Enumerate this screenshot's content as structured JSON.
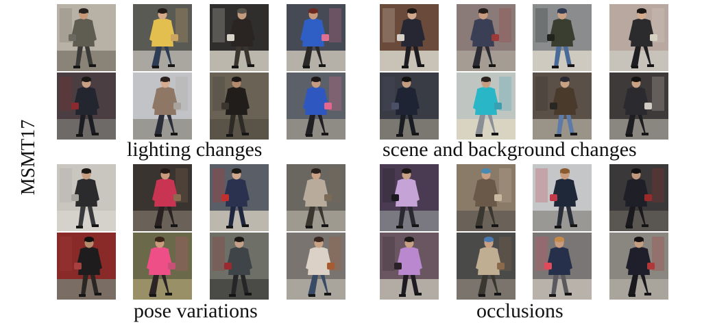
{
  "dataset_label": "MSMT17",
  "groups": [
    {
      "caption": "lighting changes",
      "rows": [
        [
          {
            "bg": "#b8b2a6",
            "ground": "#8a8478",
            "coat": "#5f5d52",
            "legs": "#3a3a38",
            "skin": "#c99a7a",
            "hair": "#2a2420",
            "accent": "#6b6960"
          },
          {
            "bg": "#5a5a55",
            "ground": "#a9a7a0",
            "coat": "#e3bf4f",
            "legs": "#2d3b55",
            "skin": "#d6ab8a",
            "hair": "#241c18",
            "accent": "#caa460"
          },
          {
            "bg": "#2f2e2c",
            "ground": "#bcb7ad",
            "coat": "#2a2522",
            "legs": "#3b3530",
            "skin": "#c49b7c",
            "hair": "#56514a",
            "accent": "#d9d4c9"
          },
          {
            "bg": "#454a55",
            "ground": "#b5b0a8",
            "coat": "#2f5ec4",
            "legs": "#2a2928",
            "skin": "#c89a7c",
            "hair": "#6a2a22",
            "accent": "#e07092"
          }
        ],
        [
          {
            "bg": "#4a3e42",
            "ground": "#6e6a68",
            "coat": "#23262f",
            "legs": "#1c1d22",
            "skin": "#c8a084",
            "hair": "#1c1816",
            "accent": "#8a2a30"
          },
          {
            "bg": "#c2c3c7",
            "ground": "#9a9893",
            "coat": "#8f7765",
            "legs": "#2b2d38",
            "skin": "#d6ad90",
            "hair": "#2a201c",
            "accent": "#a8a39d"
          },
          {
            "bg": "#6a6355",
            "ground": "#5a5448",
            "coat": "#211d1a",
            "legs": "#2e2a26",
            "skin": "#b48a6c",
            "hair": "#1d1815",
            "accent": "#3b352f"
          },
          {
            "bg": "#5c6068",
            "ground": "#8f8c86",
            "coat": "#2f57c0",
            "legs": "#1f1f24",
            "skin": "#c49a80",
            "hair": "#1c1816",
            "accent": "#e3678e"
          }
        ]
      ]
    },
    {
      "caption": "scene and background changes",
      "rows": [
        [
          {
            "bg": "#6a4a3a",
            "ground": "#c9c2b6",
            "coat": "#262733",
            "legs": "#1d1d22",
            "skin": "#d0a88c",
            "hair": "#1c1816",
            "accent": "#d7d2c8"
          },
          {
            "bg": "#8a7a78",
            "ground": "#a59d94",
            "coat": "#3a3f55",
            "legs": "#2a2b33",
            "skin": "#c99c80",
            "hair": "#241d1a",
            "accent": "#9c3a3a"
          },
          {
            "bg": "#8a8c8e",
            "ground": "#cfcac0",
            "coat": "#3a3e30",
            "legs": "#4a6a9a",
            "skin": "#caa084",
            "hair": "#2f3a52",
            "accent": "#20231e"
          },
          {
            "bg": "#b9a8a0",
            "ground": "#c8c3ba",
            "coat": "#2b2a2d",
            "legs": "#1f1f23",
            "skin": "#d4ab8f",
            "hair": "#1c1816",
            "accent": "#d6d0c3"
          }
        ],
        [
          {
            "bg": "#3a3c45",
            "ground": "#7a7870",
            "coat": "#1f2434",
            "legs": "#1a1c24",
            "skin": "#c49c80",
            "hair": "#141210",
            "accent": "#4a5066"
          },
          {
            "bg": "#bfc6c2",
            "ground": "#d9d4c2",
            "coat": "#29b6c6",
            "legs": "#8a8f96",
            "skin": "#c79e82",
            "hair": "#2a221e",
            "accent": "#3aa0b0"
          },
          {
            "bg": "#5a5048",
            "ground": "#9a9488",
            "coat": "#4a3a2c",
            "legs": "#5d7aa8",
            "skin": "#c8a084",
            "hair": "#2a2a30",
            "accent": "#2a2622"
          },
          {
            "bg": "#3f3a3a",
            "ground": "#8a8680",
            "coat": "#2b2a2e",
            "legs": "#1e1e22",
            "skin": "#c9a286",
            "hair": "#161412",
            "accent": "#cfcac2"
          }
        ]
      ]
    },
    {
      "caption": "pose variations",
      "rows": [
        [
          {
            "bg": "#c9c6c0",
            "ground": "#d5d2cc",
            "coat": "#2b2b2d",
            "legs": "#3a3a3c",
            "skin": "#c79f83",
            "hair": "#1c1816",
            "accent": "#a8a59f"
          },
          {
            "bg": "#3a3430",
            "ground": "#6a6258",
            "coat": "#c83452",
            "legs": "#2a2222",
            "skin": "#c99a7c",
            "hair": "#241a16",
            "accent": "#8a6a50"
          },
          {
            "bg": "#5a5e66",
            "ground": "#bdb8ae",
            "coat": "#2a3250",
            "legs": "#1f2640",
            "skin": "#d0a88c",
            "hair": "#1c1816",
            "accent": "#c03030"
          },
          {
            "bg": "#6a6660",
            "ground": "#9e9a90",
            "coat": "#b8ab9c",
            "legs": "#3a3630",
            "skin": "#cba286",
            "hair": "#2a201c",
            "accent": "#7a6a58"
          }
        ],
        [
          {
            "bg": "#8a2a28",
            "ground": "#7a6e64",
            "coat": "#1e1c1c",
            "legs": "#2a2624",
            "skin": "#b68a6c",
            "hair": "#141210",
            "accent": "#a84040"
          },
          {
            "bg": "#6a6a4a",
            "ground": "#9a9068",
            "coat": "#ee4f86",
            "legs": "#2b2326",
            "skin": "#c99a7c",
            "hair": "#3a2418",
            "accent": "#c85078"
          },
          {
            "bg": "#6e7068",
            "ground": "#4a4a46",
            "coat": "#3e4448",
            "legs": "#262628",
            "skin": "#c4a088",
            "hair": "#1c1816",
            "accent": "#9a2a30"
          },
          {
            "bg": "#7a7470",
            "ground": "#aaa59c",
            "coat": "#dcd1c6",
            "legs": "#394a66",
            "skin": "#caa286",
            "hair": "#3a2820",
            "accent": "#a85a30"
          }
        ]
      ]
    },
    {
      "caption": "occlusions",
      "rows": [
        [
          {
            "bg": "#4a3a52",
            "ground": "#7a7880",
            "coat": "#c5a3d6",
            "legs": "#2a2830",
            "skin": "#caa286",
            "hair": "#1c1816",
            "accent": "#1a1a1e"
          },
          {
            "bg": "#8a7a68",
            "ground": "#6a6258",
            "coat": "#6a5848",
            "legs": "#3a3630",
            "skin": "#c8a084",
            "hair": "#4a8ab0",
            "accent": "#c8b8a0"
          },
          {
            "bg": "#c5c6c8",
            "ground": "#9a9894",
            "coat": "#1e2838",
            "legs": "#2a2e38",
            "skin": "#c99c80",
            "hair": "#8a5a30",
            "accent": "#c23a4a"
          },
          {
            "bg": "#3a3838",
            "ground": "#5a5652",
            "coat": "#1f1f28",
            "legs": "#1a1a1e",
            "skin": "#c0987c",
            "hair": "#141212",
            "accent": "#9a2a2a"
          }
        ],
        [
          {
            "bg": "#6a5660",
            "ground": "#b2aca4",
            "coat": "#b988cf",
            "legs": "#1e1c22",
            "skin": "#c79f83",
            "hair": "#1c1816",
            "accent": "#2a2228"
          },
          {
            "bg": "#4a4a48",
            "ground": "#7a746c",
            "coat": "#c0ae92",
            "legs": "#3a3630",
            "skin": "#caa084",
            "hair": "#4a7ab0",
            "accent": "#8a6a4a"
          },
          {
            "bg": "#7a7676",
            "ground": "#b8b2aa",
            "coat": "#26304a",
            "legs": "#5a5a5e",
            "skin": "#c99c80",
            "hair": "#c58a4a",
            "accent": "#e04a5a"
          },
          {
            "bg": "#8a8680",
            "ground": "#aaa59c",
            "coat": "#1e1f2a",
            "legs": "#1a1a1e",
            "skin": "#c49c80",
            "hair": "#141212",
            "accent": "#b03838"
          }
        ]
      ]
    }
  ]
}
